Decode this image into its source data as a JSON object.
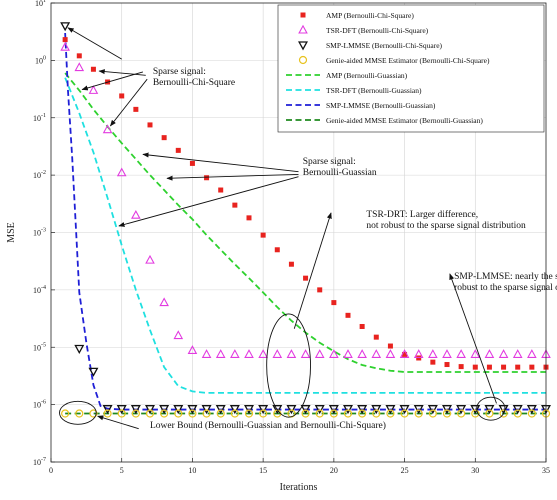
{
  "chart_data": {
    "type": "line",
    "xlabel": "Iterations",
    "ylabel": "MSE",
    "xlim": [
      0,
      35
    ],
    "ylim": [
      1e-07,
      10
    ],
    "yscale": "log",
    "xticks": [
      0,
      5,
      10,
      15,
      20,
      25,
      30,
      35
    ],
    "ytick_exponents": [
      -7,
      -6,
      -5,
      -4,
      -3,
      -2,
      -1,
      0,
      1
    ],
    "grid": true,
    "legend_position": "top-right",
    "series": [
      {
        "name": "AMP (Bernoulli-Chi-Square)",
        "style": "marker",
        "marker": "square",
        "color": "#e8231f",
        "x": [
          1,
          2,
          3,
          4,
          5,
          6,
          7,
          8,
          9,
          10,
          11,
          12,
          13,
          14,
          15,
          16,
          17,
          18,
          19,
          20,
          21,
          22,
          23,
          24,
          25,
          26,
          27,
          28,
          29,
          30,
          31,
          32,
          33,
          34,
          35
        ],
        "y": [
          2.3,
          1.2,
          0.7,
          0.42,
          0.24,
          0.14,
          0.075,
          0.045,
          0.027,
          0.016,
          0.009,
          0.0055,
          0.003,
          0.0018,
          0.0009,
          0.0005,
          0.00028,
          0.00016,
          0.0001,
          6e-05,
          3.6e-05,
          2.3e-05,
          1.5e-05,
          1.05e-05,
          7.5e-06,
          6.5e-06,
          5.5e-06,
          5e-06,
          4.6e-06,
          4.5e-06,
          4.5e-06,
          4.5e-06,
          4.5e-06,
          4.5e-06,
          4.5e-06
        ]
      },
      {
        "name": "TSR-DFT (Bernoulli-Chi-Square)",
        "style": "marker",
        "marker": "triangle-up",
        "color": "#e23be0",
        "x": [
          1,
          2,
          3,
          4,
          5,
          6,
          7,
          8,
          9,
          10,
          11,
          12,
          13,
          14,
          15,
          16,
          17,
          18,
          19,
          20,
          21,
          22,
          23,
          24,
          25,
          26,
          27,
          28,
          29,
          30,
          31,
          32,
          33,
          34,
          35
        ],
        "y": [
          1.7,
          0.75,
          0.3,
          0.062,
          0.011,
          0.002,
          0.00033,
          6e-05,
          1.6e-05,
          8.8e-06,
          7.5e-06,
          7.5e-06,
          7.5e-06,
          7.5e-06,
          7.5e-06,
          7.5e-06,
          7.5e-06,
          7.5e-06,
          7.5e-06,
          7.5e-06,
          7.5e-06,
          7.5e-06,
          7.5e-06,
          7.5e-06,
          7.5e-06,
          7.5e-06,
          7.5e-06,
          7.5e-06,
          7.5e-06,
          7.5e-06,
          7.5e-06,
          7.5e-06,
          7.5e-06,
          7.5e-06,
          7.5e-06
        ]
      },
      {
        "name": "SMP-LMMSE (Bernoulli-Chi-Square)",
        "style": "marker",
        "marker": "triangle-down",
        "color": "#111111",
        "x": [
          1,
          2,
          3,
          4,
          5,
          6,
          7,
          8,
          9,
          10,
          11,
          12,
          13,
          14,
          15,
          16,
          17,
          18,
          19,
          20,
          21,
          22,
          23,
          24,
          25,
          26,
          27,
          28,
          29,
          30,
          31,
          32,
          33,
          34,
          35
        ],
        "y": [
          4.0,
          9.5e-06,
          3.8e-06,
          8.5e-07,
          8.5e-07,
          8.5e-07,
          8.5e-07,
          8.5e-07,
          8.5e-07,
          8.5e-07,
          8.5e-07,
          8.5e-07,
          8.5e-07,
          8.5e-07,
          8.5e-07,
          8.5e-07,
          8.5e-07,
          8.5e-07,
          8.5e-07,
          8.5e-07,
          8.5e-07,
          8.5e-07,
          8.5e-07,
          8.5e-07,
          8.5e-07,
          8.5e-07,
          8.5e-07,
          8.5e-07,
          8.5e-07,
          8.5e-07,
          8.5e-07,
          8.5e-07,
          8.5e-07,
          8.5e-07,
          8.5e-07
        ]
      },
      {
        "name": "Genie-aided MMSE Estimator  (Bernoulli-Chi-Square)",
        "style": "marker",
        "marker": "circle",
        "color": "#e8c31f",
        "x": [
          1,
          2,
          3,
          4,
          5,
          6,
          7,
          8,
          9,
          10,
          11,
          12,
          13,
          14,
          15,
          16,
          17,
          18,
          19,
          20,
          21,
          22,
          23,
          24,
          25,
          26,
          27,
          28,
          29,
          30,
          31,
          32,
          33,
          34,
          35
        ],
        "y": [
          7e-07,
          7e-07,
          7e-07,
          7e-07,
          7e-07,
          7e-07,
          7e-07,
          7e-07,
          7e-07,
          7e-07,
          7e-07,
          7e-07,
          7e-07,
          7e-07,
          7e-07,
          7e-07,
          7e-07,
          7e-07,
          7e-07,
          7e-07,
          7e-07,
          7e-07,
          7e-07,
          7e-07,
          7e-07,
          7e-07,
          7e-07,
          7e-07,
          7e-07,
          7e-07,
          7e-07,
          7e-07,
          7e-07,
          7e-07,
          7e-07
        ]
      },
      {
        "name": "AMP (Bernoulli-Guassian)",
        "style": "dashed",
        "color": "#2ed12e",
        "x": [
          1,
          2,
          3,
          4,
          5,
          6,
          7,
          8,
          9,
          10,
          11,
          12,
          13,
          14,
          15,
          16,
          17,
          18,
          19,
          20,
          21,
          22,
          23,
          24,
          25,
          26,
          27,
          28,
          29,
          30,
          31,
          32,
          33,
          34,
          35
        ],
        "y": [
          0.6,
          0.3,
          0.14,
          0.07,
          0.036,
          0.019,
          0.01,
          0.0055,
          0.003,
          0.0017,
          0.0009,
          0.0005,
          0.00028,
          0.00016,
          9e-05,
          5e-05,
          2.9e-05,
          1.8e-05,
          1.2e-05,
          8.5e-06,
          6.2e-06,
          4.9e-06,
          4.3e-06,
          3.9e-06,
          3.7e-06,
          3.7e-06,
          3.7e-06,
          3.7e-06,
          3.7e-06,
          3.7e-06,
          3.7e-06,
          3.7e-06,
          3.7e-06,
          3.7e-06,
          3.7e-06
        ]
      },
      {
        "name": "TSR-DFT (Bernoulli-Guassian)",
        "style": "dashed",
        "color": "#1fe0e0",
        "x": [
          1,
          2,
          3,
          4,
          5,
          6,
          7,
          8,
          9,
          10,
          11,
          12,
          13,
          14,
          15,
          16,
          17,
          18,
          19,
          20,
          21,
          22,
          23,
          24,
          25,
          26,
          27,
          28,
          29,
          30,
          31,
          32,
          33,
          34,
          35
        ],
        "y": [
          0.5,
          0.12,
          0.025,
          0.004,
          0.0006,
          0.0001,
          2e-05,
          4.5e-06,
          2.1e-06,
          1.7e-06,
          1.6e-06,
          1.6e-06,
          1.6e-06,
          1.6e-06,
          1.6e-06,
          1.6e-06,
          1.6e-06,
          1.6e-06,
          1.6e-06,
          1.6e-06,
          1.6e-06,
          1.6e-06,
          1.6e-06,
          1.6e-06,
          1.6e-06,
          1.6e-06,
          1.6e-06,
          1.6e-06,
          1.6e-06,
          1.6e-06,
          1.6e-06,
          1.6e-06,
          1.6e-06,
          1.6e-06,
          1.6e-06
        ]
      },
      {
        "name": "SMP-LMMSE (Bernoulli-Guassian)",
        "style": "dashed",
        "color": "#1f1fd6",
        "x": [
          1,
          1.2,
          1.5,
          1.8,
          2,
          2.5,
          3,
          3.5,
          4,
          5,
          10,
          15,
          20,
          25,
          30,
          35
        ],
        "y": [
          3.0,
          0.3,
          0.02,
          0.0008,
          9e-05,
          1.2e-05,
          2.2e-06,
          9.5e-07,
          8.5e-07,
          8.2e-07,
          8.2e-07,
          8.2e-07,
          8.2e-07,
          8.2e-07,
          8.2e-07,
          8.2e-07
        ]
      },
      {
        "name": "Genie-aided MMSE Estimator (Bernoulli-Guassian)",
        "style": "dashed",
        "color": "#1f8a1f",
        "x": [
          1,
          5,
          10,
          15,
          20,
          25,
          30,
          35
        ],
        "y": [
          7e-07,
          7e-07,
          7e-07,
          7e-07,
          7e-07,
          7e-07,
          7e-07,
          7e-07
        ]
      }
    ],
    "annotations": [
      {
        "id": "chi",
        "lines": [
          "Sparse signal:",
          "Bernoulli-Chi-Square"
        ],
        "x": 7.2,
        "y": 0.58
      },
      {
        "id": "gauss",
        "lines": [
          "Sparse signal:",
          "Bernoulli-Guassian"
        ],
        "x": 17.8,
        "y": 0.0155
      },
      {
        "id": "tsr",
        "lines": [
          "TSR-DRT: Larger difference,",
          "not robust to the sparse signal distribution"
        ],
        "x": 22.3,
        "y": 0.00185
      },
      {
        "id": "smp",
        "lines": [
          "SMP-LMMSE: nearly the same,",
          "robust to the sparse signal distribution"
        ],
        "x": 28.5,
        "y": 0.000155
      },
      {
        "id": "lb",
        "lines": [
          "Lower Bound (Bernoulli-Guassian and Bernoulli-Chi-Square)"
        ],
        "x": 7.0,
        "y": 3.9e-07
      }
    ],
    "arrows": [
      {
        "from": [
          5.0,
          1.05
        ],
        "to": [
          1.2,
          3.7
        ]
      },
      {
        "from": [
          6.5,
          0.63
        ],
        "to": [
          2.2,
          0.31
        ]
      },
      {
        "from": [
          6.7,
          0.55
        ],
        "to": [
          3.4,
          0.65
        ]
      },
      {
        "from": [
          6.8,
          0.47
        ],
        "to": [
          4.2,
          0.072
        ]
      },
      {
        "from": [
          17.5,
          0.0115
        ],
        "to": [
          6.5,
          0.023
        ]
      },
      {
        "from": [
          17.5,
          0.0103
        ],
        "to": [
          8.2,
          0.0088
        ]
      },
      {
        "from": [
          17.5,
          0.0094
        ],
        "to": [
          4.8,
          0.0013
        ]
      },
      {
        "from": [
          17.2,
          2.1e-05
        ],
        "to": [
          19.8,
          0.0022
        ]
      },
      {
        "from": [
          31.5,
          1.05e-06
        ],
        "to": [
          28.2,
          0.00019
        ]
      },
      {
        "from": [
          6.2,
          3.8e-07
        ],
        "to": [
          3.3,
          6.3e-07
        ]
      }
    ],
    "ellipses": [
      {
        "cx": 16.8,
        "cy": 4.8e-06,
        "rx": 1.55,
        "decades": 0.9
      },
      {
        "cx": 31.1,
        "cy": 8.5e-07,
        "rx": 1.0,
        "decades": 0.2
      },
      {
        "cx": 1.9,
        "cy": 7.2e-07,
        "rx": 1.3,
        "decades": 0.2
      }
    ]
  }
}
